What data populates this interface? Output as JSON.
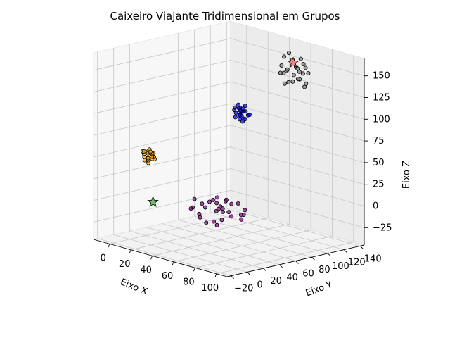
{
  "chart_data": {
    "type": "scatter",
    "title": "Caixeiro Viajante Tridimensional em Grupos",
    "xlabel": "Eixo X",
    "ylabel": "Eixo Y",
    "zlabel": "Eixo Z",
    "xlim": [
      -15,
      110
    ],
    "ylim": [
      -25,
      145
    ],
    "zlim": [
      -45,
      170
    ],
    "xticks": [
      0,
      20,
      40,
      60,
      80,
      100
    ],
    "yticks": [
      -20,
      0,
      20,
      40,
      60,
      80,
      100,
      120,
      140
    ],
    "zticks": [
      -25,
      0,
      25,
      50,
      75,
      100,
      125,
      150
    ],
    "xtick_labels": [
      "0",
      "20",
      "40",
      "60",
      "80",
      "100"
    ],
    "ytick_labels": [
      "−20",
      "0",
      "20",
      "40",
      "60",
      "80",
      "100",
      "120",
      "140"
    ],
    "ztick_labels": [
      "−25",
      "0",
      "25",
      "50",
      "75",
      "100",
      "125",
      "150"
    ],
    "grid": true,
    "view": {
      "elev": 10,
      "azim": -40
    },
    "series": [
      {
        "color": "#ffa500",
        "marker": "circle",
        "points": [
          [
            12,
            2,
            57
          ],
          [
            14,
            4,
            60
          ],
          [
            16,
            6,
            55
          ],
          [
            13,
            5,
            52
          ],
          [
            15,
            3,
            50
          ],
          [
            17,
            7,
            58
          ],
          [
            11,
            8,
            56
          ],
          [
            18,
            4,
            53
          ],
          [
            10,
            3,
            59
          ],
          [
            14,
            6,
            62
          ],
          [
            16,
            2,
            48
          ],
          [
            12,
            7,
            51
          ],
          [
            19,
            5,
            55
          ],
          [
            13,
            1,
            54
          ],
          [
            15,
            8,
            57
          ],
          [
            17,
            3,
            61
          ],
          [
            11,
            4,
            49
          ],
          [
            18,
            7,
            52
          ],
          [
            9,
            6,
            58
          ],
          [
            20,
            3,
            56
          ],
          [
            14,
            9,
            53
          ]
        ]
      },
      {
        "color": "#800080",
        "marker": "circle",
        "points": [
          [
            40,
            25,
            0
          ],
          [
            45,
            30,
            5
          ],
          [
            50,
            20,
            -3
          ],
          [
            55,
            35,
            8
          ],
          [
            60,
            28,
            2
          ],
          [
            65,
            40,
            -5
          ],
          [
            48,
            45,
            10
          ],
          [
            58,
            18,
            -10
          ],
          [
            70,
            30,
            4
          ],
          [
            42,
            38,
            -2
          ],
          [
            52,
            50,
            6
          ],
          [
            62,
            22,
            -8
          ],
          [
            75,
            42,
            0
          ],
          [
            46,
            15,
            3
          ],
          [
            68,
            48,
            -4
          ],
          [
            54,
            32,
            12
          ],
          [
            44,
            52,
            -6
          ],
          [
            72,
            20,
            7
          ],
          [
            56,
            40,
            -12
          ],
          [
            64,
            35,
            15
          ],
          [
            50,
            60,
            0
          ],
          [
            38,
            30,
            8
          ],
          [
            78,
            35,
            -3
          ],
          [
            60,
            55,
            5
          ],
          [
            47,
            25,
            -9
          ],
          [
            66,
            25,
            10
          ],
          [
            53,
            45,
            -1
          ],
          [
            70,
            50,
            2
          ],
          [
            43,
            42,
            4
          ],
          [
            59,
            30,
            -15
          ]
        ]
      },
      {
        "color": "#0000ff",
        "marker": "circle",
        "points": [
          [
            30,
            90,
            95
          ],
          [
            33,
            93,
            98
          ],
          [
            36,
            96,
            94
          ],
          [
            34,
            92,
            90
          ],
          [
            31,
            95,
            88
          ],
          [
            38,
            91,
            96
          ],
          [
            32,
            98,
            92
          ],
          [
            35,
            89,
            99
          ],
          [
            37,
            94,
            86
          ],
          [
            29,
            92,
            97
          ],
          [
            39,
            97,
            91
          ],
          [
            33,
            88,
            93
          ],
          [
            36,
            99,
            89
          ],
          [
            30,
            95,
            100
          ],
          [
            34,
            96,
            85
          ],
          [
            38,
            93,
            102
          ],
          [
            31,
            90,
            87
          ],
          [
            35,
            92,
            95
          ],
          [
            37,
            88,
            97
          ],
          [
            32,
            94,
            84
          ],
          [
            36,
            91,
            90
          ],
          [
            33,
            97,
            96
          ],
          [
            34,
            95,
            82
          ]
        ]
      },
      {
        "color": "#808080",
        "marker": "circle",
        "points": [
          [
            60,
            115,
            145
          ],
          [
            65,
            120,
            150
          ],
          [
            70,
            118,
            138
          ],
          [
            58,
            125,
            155
          ],
          [
            62,
            110,
            132
          ],
          [
            68,
            122,
            160
          ],
          [
            72,
            115,
            148
          ],
          [
            55,
            118,
            140
          ],
          [
            66,
            128,
            152
          ],
          [
            60,
            112,
            162
          ],
          [
            64,
            124,
            135
          ],
          [
            70,
            110,
            158
          ],
          [
            58,
            120,
            130
          ],
          [
            66,
            116,
            142
          ],
          [
            62,
            126,
            146
          ],
          [
            74,
            120,
            152
          ],
          [
            56,
            114,
            150
          ],
          [
            68,
            112,
            136
          ],
          [
            64,
            130,
            140
          ],
          [
            72,
            126,
            144
          ],
          [
            60,
            118,
            165
          ],
          [
            70,
            124,
            128
          ],
          [
            58,
            110,
            143
          ],
          [
            66,
            108,
            150
          ],
          [
            76,
            118,
            135
          ]
        ]
      }
    ],
    "highlights": [
      {
        "marker": "star",
        "color": "#6fbf73",
        "point": [
          18,
          5,
          3
        ]
      },
      {
        "marker": "star",
        "color": "#f28080",
        "point": [
          64,
          118,
          155
        ]
      }
    ]
  }
}
